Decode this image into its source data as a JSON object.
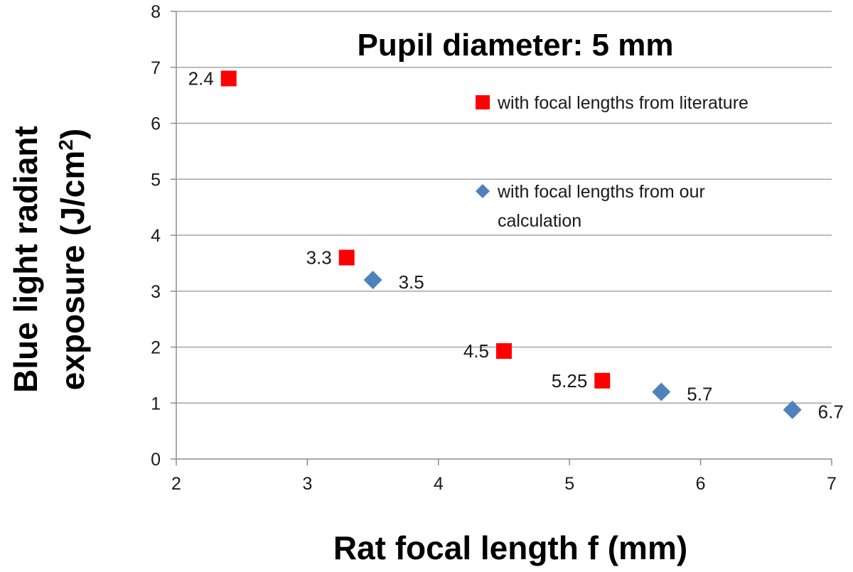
{
  "chart_data": {
    "type": "scatter",
    "title": "Pupil diameter: 5 mm",
    "xlabel": "Rat focal length f (mm)",
    "ylabel_line1": "Blue light radiant",
    "ylabel_line2_pre": "exposure (J/cm",
    "ylabel_sup": "2",
    "ylabel_line2_post": ")",
    "xlim": [
      2,
      7
    ],
    "ylim": [
      0,
      8
    ],
    "x_ticks": [
      "2",
      "3",
      "4",
      "5",
      "6",
      "7"
    ],
    "y_ticks": [
      "0",
      "1",
      "2",
      "3",
      "4",
      "5",
      "6",
      "7",
      "8"
    ],
    "grid": "horizontal",
    "legend_position": "right",
    "series": [
      {
        "name": "with focal lengths from literature",
        "name_lines": [
          "with focal lengths from literature"
        ],
        "marker": "square",
        "color": "#ff0000",
        "points": [
          {
            "x": 2.4,
            "y": 6.8,
            "label": "2.4"
          },
          {
            "x": 3.3,
            "y": 3.6,
            "label": "3.3"
          },
          {
            "x": 4.5,
            "y": 1.93,
            "label": "4.5"
          },
          {
            "x": 5.25,
            "y": 1.4,
            "label": "5.25"
          }
        ]
      },
      {
        "name": "with focal lengths from our calculation",
        "name_lines": [
          "with focal lengths from our",
          "calculation"
        ],
        "marker": "diamond",
        "color": "#4f81bd",
        "points": [
          {
            "x": 3.5,
            "y": 3.2,
            "label": "3.5"
          },
          {
            "x": 5.7,
            "y": 1.2,
            "label": "5.7"
          },
          {
            "x": 6.7,
            "y": 0.88,
            "label": "6.7"
          }
        ]
      }
    ]
  }
}
